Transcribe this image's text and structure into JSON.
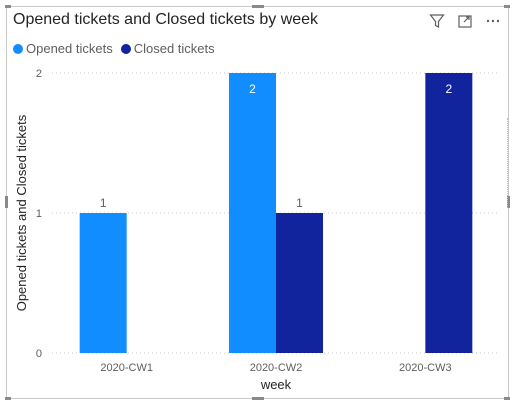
{
  "chart_data": {
    "type": "bar",
    "title": "Opened tickets and Closed tickets by week",
    "xlabel": "week",
    "ylabel": "Opened tickets and Closed tickets",
    "categories": [
      "2020-CW1",
      "2020-CW2",
      "2020-CW3"
    ],
    "series": [
      {
        "name": "Opened tickets",
        "values": [
          1,
          2,
          0
        ],
        "color": "#118DFF"
      },
      {
        "name": "Closed tickets",
        "values": [
          0,
          1,
          2
        ],
        "color": "#12239E"
      }
    ],
    "yticks": [
      "0",
      "1",
      "2"
    ],
    "ylim": [
      0,
      2
    ],
    "grid": true,
    "legend_position": "top-left",
    "data_labels": true
  },
  "toolbar": {
    "icons": [
      "filter-icon",
      "focus-mode-icon",
      "more-options-icon"
    ]
  }
}
